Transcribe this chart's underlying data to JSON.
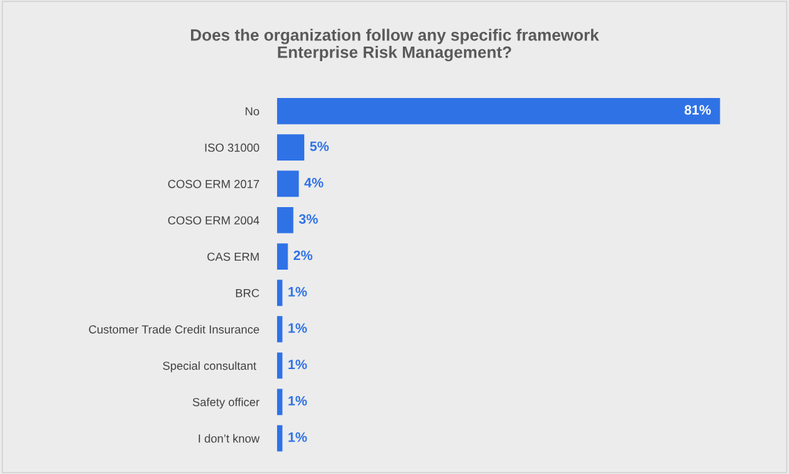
{
  "chart_data": {
    "type": "bar",
    "orientation": "horizontal",
    "title": "Does the organization follow any specific framework\nEnterprise Risk Management?",
    "categories": [
      "No",
      "ISO 31000",
      "COSO ERM 2017",
      "COSO ERM 2004",
      "CAS ERM",
      "BRC",
      "Customer Trade Credit Insurance",
      "Special consultant ",
      "Safety officer",
      "I don’t know"
    ],
    "values": [
      81,
      5,
      4,
      3,
      2,
      1,
      1,
      1,
      1,
      1
    ],
    "value_labels": [
      "81%",
      "5%",
      "4%",
      "3%",
      "2%",
      "1%",
      "1%",
      "1%",
      "1%",
      "1%"
    ],
    "color": "#2f72e6",
    "grid": false,
    "legend": false
  }
}
